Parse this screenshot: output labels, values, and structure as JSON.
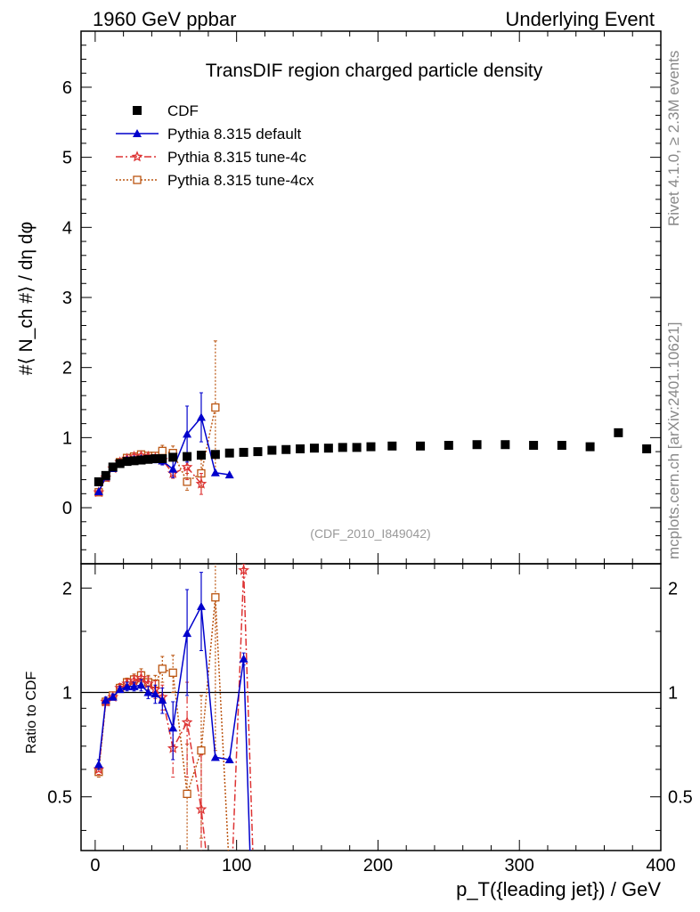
{
  "header": {
    "left": "1960 GeV ppbar",
    "right": "Underlying Event"
  },
  "side_labels": {
    "rivet": "Rivet 4.1.0, ≥ 2.3M events",
    "mcplots": "mcplots.cern.ch [arXiv:2401.10621]"
  },
  "chart_data": {
    "type": "scatter",
    "title": "TransDIF region charged particle density",
    "analysis_label": "(CDF_2010_I849042)",
    "xlabel": "p_T({leading jet}) / GeV",
    "ylabel": "#⟨ N_ch #⟩ / dη dφ",
    "ratio_ylabel": "Ratio to CDF",
    "xlim": [
      -10,
      400
    ],
    "ylim": [
      -0.8,
      6.8
    ],
    "ratio_ylim": [
      0.35,
      2.35
    ],
    "x_ticks": [
      0,
      100,
      200,
      300,
      400
    ],
    "y_ticks": [
      0,
      1,
      2,
      3,
      4,
      5,
      6
    ],
    "ratio_ticks": [
      0.5,
      1,
      2
    ],
    "legend": [
      {
        "label": "CDF",
        "series": "cdf"
      },
      {
        "label": "Pythia 8.315 default",
        "series": "default"
      },
      {
        "label": "Pythia 8.315 tune-4c",
        "series": "tune4c"
      },
      {
        "label": "Pythia 8.315 tune-4cx",
        "series": "tune4cx"
      }
    ],
    "series": [
      {
        "id": "cdf",
        "name": "CDF",
        "color": "#000000",
        "marker": "square",
        "x": [
          2.5,
          7.5,
          12.5,
          17.5,
          22.5,
          27.5,
          32.5,
          37.5,
          42.5,
          47.5,
          55,
          65,
          75,
          85,
          95,
          105,
          115,
          125,
          135,
          145,
          155,
          165,
          175,
          185,
          195,
          210,
          230,
          250,
          270,
          290,
          310,
          330,
          350,
          370,
          390
        ],
        "y": [
          0.37,
          0.46,
          0.58,
          0.63,
          0.66,
          0.67,
          0.68,
          0.69,
          0.7,
          0.7,
          0.72,
          0.73,
          0.75,
          0.76,
          0.78,
          0.79,
          0.8,
          0.82,
          0.83,
          0.84,
          0.85,
          0.85,
          0.86,
          0.86,
          0.87,
          0.88,
          0.88,
          0.89,
          0.9,
          0.9,
          0.89,
          0.89,
          0.87,
          1.07,
          0.84
        ]
      },
      {
        "id": "default",
        "name": "Pythia 8.315 default",
        "color": "#0000cc",
        "marker": "triangle",
        "dash": "",
        "x": [
          2.5,
          7.5,
          12.5,
          17.5,
          22.5,
          27.5,
          32.5,
          37.5,
          42.5,
          47.5,
          55,
          65,
          75,
          85,
          95
        ],
        "y": [
          0.23,
          0.44,
          0.56,
          0.64,
          0.68,
          0.69,
          0.7,
          0.69,
          0.69,
          0.67,
          0.55,
          1.05,
          1.29,
          0.5,
          0.47
        ],
        "err": [
          0.01,
          0.01,
          0.01,
          0.02,
          0.02,
          0.02,
          0.03,
          0.03,
          0.05,
          0.06,
          0.12,
          0.4,
          0.35,
          0,
          0
        ],
        "ratio_x": [
          2.5,
          7.5,
          12.5,
          17.5,
          22.5,
          27.5,
          32.5,
          37.5,
          42.5,
          47.5,
          55,
          65,
          75,
          85,
          95,
          105,
          110
        ],
        "ratio_y": [
          0.62,
          0.95,
          0.97,
          1.02,
          1.04,
          1.04,
          1.05,
          1.0,
          0.99,
          0.95,
          0.79,
          1.48,
          1.77,
          0.65,
          0.64,
          1.25,
          0.3
        ],
        "ratio_err": [
          0.02,
          0.02,
          0.02,
          0.02,
          0.03,
          0.03,
          0.04,
          0.04,
          0.06,
          0.08,
          0.15,
          0.5,
          0.45,
          0,
          0,
          0.05,
          0
        ]
      },
      {
        "id": "tune4c",
        "name": "Pythia 8.315 tune-4c",
        "color": "#dd3333",
        "marker": "star",
        "dash": "8,3,2,3",
        "x": [
          2.5,
          7.5,
          12.5,
          17.5,
          22.5,
          27.5,
          32.5,
          37.5,
          42.5,
          47.5,
          55,
          65,
          75
        ],
        "y": [
          0.22,
          0.43,
          0.56,
          0.65,
          0.7,
          0.73,
          0.74,
          0.73,
          0.71,
          0.68,
          0.49,
          0.58,
          0.34
        ],
        "err": [
          0.01,
          0.01,
          0.01,
          0.02,
          0.02,
          0.03,
          0.03,
          0.03,
          0.04,
          0.06,
          0.07,
          0.18,
          0.15
        ],
        "ratio_x": [
          2.5,
          7.5,
          12.5,
          17.5,
          22.5,
          27.5,
          32.5,
          37.5,
          42.5,
          47.5,
          55,
          65,
          75,
          85,
          95,
          105,
          112
        ],
        "ratio_y": [
          0.6,
          0.94,
          0.97,
          1.03,
          1.06,
          1.08,
          1.1,
          1.06,
          1.02,
          0.97,
          0.69,
          0.82,
          0.46,
          0.2,
          0.2,
          2.25,
          0.3
        ],
        "ratio_err": [
          0.02,
          0.02,
          0.02,
          0.03,
          0.03,
          0.04,
          0.05,
          0.05,
          0.06,
          0.08,
          0.12,
          0.25,
          0.2,
          0,
          0,
          0.1,
          0
        ]
      },
      {
        "id": "tune4cx",
        "name": "Pythia 8.315 tune-4cx",
        "color": "#bb5511",
        "marker": "open-square",
        "dash": "2,2",
        "x": [
          2.5,
          7.5,
          12.5,
          17.5,
          22.5,
          27.5,
          32.5,
          37.5,
          42.5,
          47.5,
          55,
          65,
          75,
          85
        ],
        "y": [
          0.22,
          0.43,
          0.57,
          0.65,
          0.71,
          0.73,
          0.76,
          0.74,
          0.74,
          0.81,
          0.78,
          0.37,
          0.49,
          1.43
        ],
        "err": [
          0.01,
          0.01,
          0.01,
          0.02,
          0.02,
          0.03,
          0.03,
          0.04,
          0.04,
          0.08,
          0.1,
          0.12,
          0.2,
          0.95
        ],
        "ratio_x": [
          2.5,
          7.5,
          12.5,
          17.5,
          22.5,
          27.5,
          32.5,
          37.5,
          42.5,
          47.5,
          55,
          65,
          75,
          85,
          95
        ],
        "ratio_y": [
          0.59,
          0.94,
          0.98,
          1.03,
          1.07,
          1.09,
          1.12,
          1.07,
          1.06,
          1.17,
          1.14,
          0.51,
          0.68,
          1.88,
          0.3
        ],
        "ratio_err": [
          0.02,
          0.02,
          0.02,
          0.03,
          0.03,
          0.04,
          0.05,
          0.05,
          0.06,
          0.1,
          0.14,
          0.2,
          0.3,
          1.2,
          0
        ]
      }
    ]
  }
}
